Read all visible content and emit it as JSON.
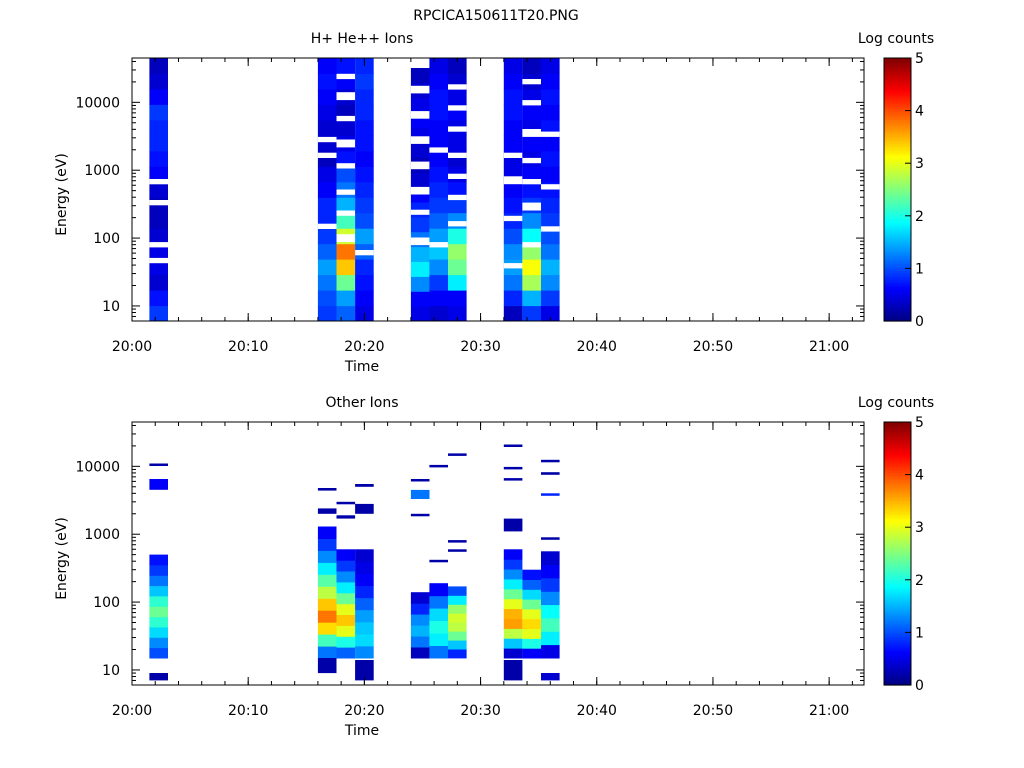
{
  "title": "RPCICA150611T20.PNG",
  "colorbar": {
    "label": "Log counts",
    "ticks": [
      "0",
      "1",
      "2",
      "3",
      "4",
      "5"
    ],
    "min": 0,
    "max": 5
  },
  "chart_data": [
    {
      "type": "heatmap",
      "title": "H+ He++ Ions",
      "xlabel": "Time",
      "ylabel": "Energy (eV)",
      "xlim": [
        "20:00",
        "21:03"
      ],
      "ylim": [
        6,
        45000
      ],
      "yscale": "log",
      "x_ticks": [
        "20:00",
        "20:10",
        "20:20",
        "20:30",
        "20:40",
        "20:50",
        "21:00"
      ],
      "y_ticks": [
        "10",
        "100",
        "1000",
        "10000"
      ],
      "columns": [
        {
          "start": "20:01.5",
          "end": "20:03.1",
          "emax": 45000,
          "emin": 6,
          "levels": [
            0.9,
            0.7,
            0.4,
            0.5,
            0.5,
            0.4,
            0.3,
            0.3,
            0.4,
            0.6,
            0.7,
            0.8,
            0.8,
            0.9,
            0.6,
            0.4,
            0.3
          ],
          "gaps": [
            0.52,
            0.54,
            0.44,
            0.46,
            0.22,
            0.24,
            0.28,
            0.3
          ]
        },
        {
          "start": "20:16.0",
          "end": "20:17.6",
          "emax": 45000,
          "emin": 6,
          "levels": [
            0.9,
            1.0,
            1.2,
            1.4,
            1.1,
            0.9,
            0.8,
            0.8,
            0.6,
            0.5,
            0.3,
            0.4,
            0.4,
            0.5,
            0.6,
            0.7,
            0.6
          ],
          "gaps": [
            0.35,
            0.37,
            0.62,
            0.64,
            0.68,
            0.7
          ]
        },
        {
          "start": "20:17.6",
          "end": "20:19.2",
          "emax": 45000,
          "emin": 6,
          "levels": [
            1.1,
            1.4,
            2.4,
            3.4,
            3.8,
            2.9,
            2.2,
            1.5,
            1.2,
            1.0,
            0.7,
            0.5,
            0.4,
            0.3,
            0.4,
            0.6,
            0.7
          ],
          "gaps": [
            0.3,
            0.33,
            0.4,
            0.42,
            0.48,
            0.5,
            0.58,
            0.6,
            0.66,
            0.69,
            0.76,
            0.78,
            0.84,
            0.87,
            0.92,
            0.94
          ]
        },
        {
          "start": "20:19.2",
          "end": "20:20.8",
          "emax": 45000,
          "emin": 6,
          "levels": [
            0.5,
            0.6,
            0.7,
            0.8,
            1.1,
            1.4,
            1.0,
            0.9,
            0.8,
            0.7,
            0.6,
            0.7,
            0.7,
            0.8,
            0.8,
            0.9,
            0.8
          ],
          "gaps": [
            0.25,
            0.27
          ]
        },
        {
          "start": "20:24.0",
          "end": "20:25.6",
          "emax": 32000,
          "emin": 6,
          "levels": [
            0.5,
            0.6,
            1.3,
            1.8,
            1.5,
            1.2,
            0.9,
            0.8,
            0.6,
            0.4,
            0.3,
            0.4,
            0.5,
            0.6,
            0.5,
            0.4,
            0.3
          ],
          "gaps": [
            0.3,
            0.33,
            0.42,
            0.44,
            0.5,
            0.53,
            0.6,
            0.63,
            0.7,
            0.73,
            0.8,
            0.83,
            0.9,
            0.93
          ]
        },
        {
          "start": "20:25.6",
          "end": "20:27.2",
          "emax": 45000,
          "emin": 6,
          "levels": [
            0.4,
            0.6,
            0.9,
            1.3,
            1.6,
            1.4,
            1.1,
            0.9,
            0.8,
            0.7,
            0.6,
            0.6,
            0.6,
            0.7,
            0.7,
            0.6,
            0.5
          ],
          "gaps": [
            0.28,
            0.3,
            0.64,
            0.66
          ]
        },
        {
          "start": "20:27.2",
          "end": "20:28.8",
          "emax": 45000,
          "emin": 6,
          "levels": [
            0.5,
            0.6,
            1.8,
            2.4,
            2.6,
            2.0,
            1.3,
            0.9,
            0.7,
            0.5,
            0.4,
            0.5,
            0.5,
            0.6,
            0.5,
            0.4,
            0.3
          ],
          "gaps": [
            0.36,
            0.38,
            0.46,
            0.48,
            0.54,
            0.56,
            0.62,
            0.64,
            0.72,
            0.74,
            0.8,
            0.82,
            0.88,
            0.9
          ]
        },
        {
          "start": "20:32.0",
          "end": "20:33.6",
          "emax": 45000,
          "emin": 6,
          "levels": [
            0.3,
            0.8,
            1.2,
            1.4,
            1.3,
            1.0,
            0.8,
            0.7,
            0.6,
            0.5,
            0.5,
            0.6,
            0.6,
            0.7,
            0.7,
            0.6,
            0.5
          ],
          "gaps": [
            0.2,
            0.22,
            0.38,
            0.4,
            0.52,
            0.55,
            0.62,
            0.64
          ]
        },
        {
          "start": "20:33.6",
          "end": "20:35.2",
          "emax": 45000,
          "emin": 6,
          "levels": [
            0.9,
            1.5,
            2.7,
            3.1,
            2.6,
            1.9,
            1.3,
            0.9,
            0.7,
            0.6,
            0.5,
            0.6,
            0.5,
            0.6,
            0.5,
            0.4,
            0.3
          ],
          "gaps": [
            0.28,
            0.3,
            0.42,
            0.45,
            0.52,
            0.54,
            0.6,
            0.62,
            0.7,
            0.73,
            0.82,
            0.84,
            0.9,
            0.92
          ]
        },
        {
          "start": "20:35.2",
          "end": "20:36.8",
          "emax": 45000,
          "emin": 6,
          "levels": [
            0.5,
            0.9,
            1.3,
            1.5,
            1.2,
            1.0,
            0.9,
            0.8,
            0.7,
            0.6,
            0.7,
            0.6,
            0.7,
            0.6,
            0.7,
            0.6,
            0.5
          ],
          "gaps": [
            0.34,
            0.36,
            0.5,
            0.52,
            0.7,
            0.72
          ]
        }
      ]
    },
    {
      "type": "heatmap",
      "title": "Other Ions",
      "xlabel": "Time",
      "ylabel": "Energy (eV)",
      "xlim": [
        "20:00",
        "21:03"
      ],
      "ylim": [
        6,
        45000
      ],
      "yscale": "log",
      "x_ticks": [
        "20:00",
        "20:10",
        "20:20",
        "20:30",
        "20:40",
        "20:50",
        "21:00"
      ],
      "y_ticks": [
        "10",
        "100",
        "1000",
        "10000"
      ],
      "columns": [
        {
          "start": "20:01.5",
          "end": "20:03.1",
          "emax": 500,
          "emin": 15,
          "levels": [
            1.0,
            1.3,
            1.7,
            2.1,
            2.4,
            2.1,
            1.6,
            1.2,
            0.9,
            0.7
          ],
          "extra": [
            [
              4500,
              6500,
              0.6
            ],
            [
              7,
              9,
              0.2
            ],
            [
              10500,
              11000,
              0.2
            ]
          ]
        },
        {
          "start": "20:16.0",
          "end": "20:17.6",
          "emax": 1300,
          "emin": 15,
          "levels": [
            1.2,
            2.2,
            3.3,
            3.8,
            3.4,
            2.8,
            2.3,
            1.8,
            1.3,
            0.9,
            0.6
          ],
          "extra": [
            [
              9,
              15,
              0.2
            ],
            [
              2000,
              2400,
              0.2
            ],
            [
              4400,
              4800,
              0.2
            ]
          ]
        },
        {
          "start": "20:17.6",
          "end": "20:19.2",
          "emax": 600,
          "emin": 15,
          "levels": [
            1.1,
            2.0,
            3.0,
            3.4,
            3.0,
            2.4,
            1.8,
            1.3,
            0.9,
            0.6
          ],
          "extra": [
            [
              1700,
              1900,
              0.2
            ],
            [
              2800,
              3000,
              0.2
            ]
          ]
        },
        {
          "start": "20:19.2",
          "end": "20:20.8",
          "emax": 600,
          "emin": 15,
          "levels": [
            1.3,
            1.7,
            1.6,
            1.4,
            1.1,
            0.8,
            0.6,
            0.5,
            0.4
          ],
          "extra": [
            [
              7,
              14,
              0.2
            ],
            [
              2000,
              2800,
              0.2
            ],
            [
              5000,
              5500,
              0.2
            ]
          ]
        },
        {
          "start": "20:24.0",
          "end": "20:25.6",
          "emax": 140,
          "emin": 15,
          "levels": [
            0.3,
            1.2,
            1.5,
            1.3,
            0.8,
            0.4
          ],
          "extra": [
            [
              1900,
              2000,
              0.2
            ],
            [
              3300,
              4500,
              1.2
            ],
            [
              6300,
              6500,
              0.2
            ]
          ]
        },
        {
          "start": "20:25.6",
          "end": "20:27.2",
          "emax": 190,
          "emin": 15,
          "levels": [
            1.2,
            1.8,
            2.0,
            1.7,
            1.2,
            0.6
          ],
          "extra": [
            [
              400,
              420,
              0.2
            ],
            [
              10000,
              10500,
              0.2
            ]
          ]
        },
        {
          "start": "20:27.2",
          "end": "20:28.8",
          "emax": 170,
          "emin": 15,
          "levels": [
            0.8,
            1.6,
            2.4,
            2.8,
            2.9,
            2.6,
            1.8,
            1.0
          ],
          "extra": [
            [
              560,
              600,
              0.2
            ],
            [
              780,
              820,
              0.2
            ],
            [
              15000,
              15500,
              0.2
            ]
          ]
        },
        {
          "start": "20:32.0",
          "end": "20:33.6",
          "emax": 600,
          "emin": 15,
          "levels": [
            0.4,
            1.6,
            2.8,
            3.6,
            3.5,
            3.0,
            2.4,
            1.8,
            1.3,
            0.9,
            0.6
          ],
          "extra": [
            [
              7,
              14,
              0.2
            ],
            [
              1100,
              1700,
              0.2
            ],
            [
              6400,
              6700,
              0.2
            ],
            [
              9000,
              9800,
              0.2
            ],
            [
              20000,
              21000,
              0.2
            ]
          ]
        },
        {
          "start": "20:33.6",
          "end": "20:35.2",
          "emax": 300,
          "emin": 15,
          "levels": [
            0.6,
            2.0,
            3.0,
            3.3,
            3.0,
            2.4,
            1.7,
            1.1,
            0.7
          ],
          "extra": []
        },
        {
          "start": "20:35.2",
          "end": "20:36.8",
          "emax": 560,
          "emin": 15,
          "levels": [
            0.5,
            1.8,
            2.2,
            1.9,
            1.3,
            0.9,
            0.6,
            0.4
          ],
          "extra": [
            [
              7,
              9,
              0.4
            ],
            [
              850,
              900,
              0.2
            ],
            [
              3800,
              4000,
              0.8
            ],
            [
              7500,
              8200,
              0.2
            ],
            [
              12000,
              12500,
              0.2
            ]
          ]
        }
      ]
    }
  ]
}
